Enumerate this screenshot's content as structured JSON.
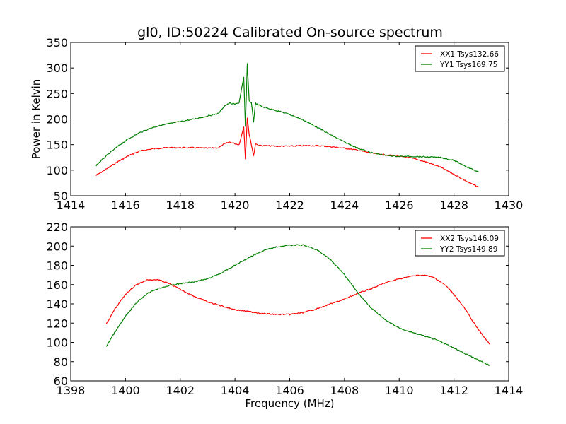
{
  "chart_data": [
    {
      "type": "line",
      "title": "gl0, ID:50224 Calibrated On-source spectrum",
      "xlabel": "",
      "ylabel": "Power in Kelvin",
      "xlim": [
        1414,
        1430
      ],
      "ylim": [
        50,
        350
      ],
      "xticks": [
        1414,
        1416,
        1418,
        1420,
        1422,
        1424,
        1426,
        1428,
        1430
      ],
      "yticks": [
        50,
        100,
        150,
        200,
        250,
        300,
        350
      ],
      "grid": false,
      "legend_position": "top-right",
      "series": [
        {
          "name": "XX1 Tsys132.66",
          "color": "#ff0000",
          "x": [
            1414.9,
            1415.3,
            1415.7,
            1416.1,
            1416.5,
            1417.0,
            1417.5,
            1418.0,
            1418.5,
            1419.0,
            1419.4,
            1419.6,
            1419.8,
            1420.0,
            1420.15,
            1420.25,
            1420.32,
            1420.38,
            1420.45,
            1420.52,
            1420.6,
            1420.68,
            1420.75,
            1420.85,
            1421.0,
            1421.5,
            1422.0,
            1422.5,
            1423.0,
            1423.5,
            1424.0,
            1424.5,
            1425.0,
            1425.5,
            1426.0,
            1426.5,
            1427.0,
            1427.5,
            1428.0,
            1428.5,
            1428.9
          ],
          "y": [
            89,
            102,
            116,
            128,
            137,
            142,
            144,
            144,
            144,
            143,
            144,
            151,
            155,
            152,
            150,
            170,
            185,
            123,
            203,
            170,
            150,
            128,
            152,
            149,
            148,
            147,
            147,
            148,
            148,
            146,
            143,
            139,
            133,
            130,
            127,
            123,
            116,
            106,
            92,
            77,
            67
          ]
        },
        {
          "name": "YY1 Tsys169.75",
          "color": "#008000",
          "x": [
            1414.9,
            1415.3,
            1415.7,
            1416.1,
            1416.5,
            1417.0,
            1417.5,
            1418.0,
            1418.5,
            1419.0,
            1419.4,
            1419.6,
            1419.8,
            1420.0,
            1420.15,
            1420.25,
            1420.32,
            1420.38,
            1420.45,
            1420.52,
            1420.6,
            1420.68,
            1420.75,
            1420.85,
            1421.0,
            1421.5,
            1422.0,
            1422.5,
            1423.0,
            1423.5,
            1424.0,
            1424.5,
            1425.0,
            1425.5,
            1426.0,
            1426.5,
            1427.0,
            1427.5,
            1428.0,
            1428.5,
            1428.9
          ],
          "y": [
            108,
            128,
            146,
            161,
            173,
            184,
            190,
            195,
            200,
            206,
            211,
            225,
            231,
            229,
            232,
            262,
            281,
            185,
            308,
            235,
            232,
            195,
            231,
            228,
            224,
            217,
            209,
            198,
            184,
            169,
            155,
            143,
            134,
            129,
            127,
            127,
            126,
            125,
            119,
            106,
            96
          ]
        }
      ]
    },
    {
      "type": "line",
      "title": "",
      "xlabel": "Frequency (MHz)",
      "ylabel": "",
      "xlim": [
        1398,
        1414
      ],
      "ylim": [
        60,
        220
      ],
      "xticks": [
        1398,
        1400,
        1402,
        1404,
        1406,
        1408,
        1410,
        1412,
        1414
      ],
      "yticks": [
        60,
        80,
        100,
        120,
        140,
        160,
        180,
        200,
        220
      ],
      "grid": false,
      "legend_position": "top-right",
      "series": [
        {
          "name": "XX2 Tsys146.09",
          "color": "#ff0000",
          "x": [
            1399.3,
            1399.6,
            1400.0,
            1400.4,
            1400.8,
            1401.2,
            1401.6,
            1402.0,
            1402.5,
            1403.0,
            1403.5,
            1404.0,
            1404.5,
            1405.0,
            1405.5,
            1406.0,
            1406.5,
            1407.0,
            1407.5,
            1408.0,
            1408.5,
            1409.0,
            1409.5,
            1410.0,
            1410.5,
            1410.9,
            1411.3,
            1411.7,
            1412.0,
            1412.4,
            1412.8,
            1413.3
          ],
          "y": [
            119,
            134,
            150,
            160,
            165,
            165,
            161,
            155,
            148,
            142,
            138,
            134,
            132,
            130,
            129,
            129,
            131,
            135,
            140,
            145,
            151,
            156,
            162,
            166,
            169,
            170,
            167,
            159,
            150,
            135,
            117,
            98
          ]
        },
        {
          "name": "YY2 Tsys149.89",
          "color": "#008000",
          "x": [
            1399.3,
            1399.6,
            1400.0,
            1400.4,
            1400.8,
            1401.2,
            1401.6,
            1402.0,
            1402.5,
            1403.0,
            1403.5,
            1404.0,
            1404.5,
            1405.0,
            1405.5,
            1406.0,
            1406.5,
            1407.0,
            1407.5,
            1408.0,
            1408.5,
            1409.0,
            1409.5,
            1410.0,
            1410.5,
            1411.0,
            1411.5,
            1412.0,
            1412.5,
            1413.0,
            1413.3
          ],
          "y": [
            96,
            110,
            127,
            141,
            151,
            156,
            159,
            161,
            163,
            166,
            172,
            180,
            188,
            195,
            199,
            201,
            201,
            196,
            186,
            170,
            151,
            135,
            123,
            115,
            110,
            106,
            101,
            94,
            87,
            80,
            76
          ]
        }
      ]
    }
  ]
}
